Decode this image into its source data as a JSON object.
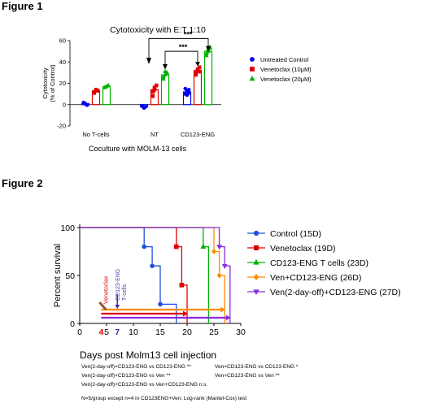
{
  "figure1_title": "Figure 1",
  "figure2_title": "Figure 2",
  "chart_data": [
    {
      "type": "bar",
      "title": "Cytotoxicity with E:T 1:10",
      "ylabel": "Cytotoxicity\n(% of Control)",
      "xlabel": "Coculture with MOLM-13 cells",
      "categories": [
        "No T-cells",
        "NT",
        "CD123-ENG"
      ],
      "ylim": [
        -20,
        60
      ],
      "yticks": [
        -20,
        0,
        20,
        40,
        60
      ],
      "series": [
        {
          "name": "Untreated Control",
          "color": "#0000ee",
          "marker": "circle",
          "values": [
            1,
            -2,
            12
          ],
          "points": [
            [
              2,
              0.5,
              -0.5
            ],
            [
              -1,
              -3,
              -2,
              -1.5,
              -3
            ],
            [
              10,
              13,
              11,
              15,
              9,
              14
            ]
          ]
        },
        {
          "name": "Venetoclax (10μM)",
          "color": "#e00000",
          "marker": "square",
          "values": [
            13,
            14,
            32
          ],
          "points": [
            [
              11,
              14,
              13
            ],
            [
              8,
              14,
              18,
              12,
              16
            ],
            [
              28,
              32,
              35,
              30,
              33,
              31
            ]
          ]
        },
        {
          "name": "Venetoclax (20μM)",
          "color": "#00b000",
          "marker": "triangle",
          "values": [
            17,
            28,
            50
          ],
          "points": [
            [
              16,
              17,
              18
            ],
            [
              24,
              28,
              30,
              26,
              31
            ],
            [
              46,
              50,
              54,
              48,
              52,
              53
            ]
          ]
        }
      ],
      "significance": [
        "***",
        "***"
      ]
    },
    {
      "type": "line",
      "subtype": "kaplan-meier",
      "ylabel": "Percent survival",
      "xlabel": "Days post Molm13 cell injection",
      "xlim": [
        0,
        30
      ],
      "ylim": [
        0,
        100
      ],
      "xticks": [
        0,
        5,
        10,
        15,
        20,
        25,
        30
      ],
      "yticks": [
        0,
        50,
        100
      ],
      "series": [
        {
          "name": "Control (15D)",
          "color": "#1f4fe0",
          "marker": "circle",
          "steps": [
            [
              0,
              100
            ],
            [
              12,
              80
            ],
            [
              13.5,
              60
            ],
            [
              15,
              20
            ],
            [
              18,
              0
            ]
          ]
        },
        {
          "name": "Venetoclax (19D)",
          "color": "#e00000",
          "marker": "square",
          "steps": [
            [
              0,
              100
            ],
            [
              18,
              80
            ],
            [
              19,
              40
            ],
            [
              20,
              0
            ]
          ]
        },
        {
          "name": "CD123-ENG T cells (23D)",
          "color": "#00b000",
          "marker": "triangle",
          "steps": [
            [
              0,
              100
            ],
            [
              23,
              80
            ],
            [
              24,
              0
            ]
          ]
        },
        {
          "name": "Ven+CD123-ENG (26D)",
          "color": "#ff8c00",
          "marker": "diamond",
          "steps": [
            [
              0,
              100
            ],
            [
              25,
              75
            ],
            [
              26,
              50
            ],
            [
              27,
              0
            ]
          ]
        },
        {
          "name": "Ven(2-day-off)+CD123-ENG (27D)",
          "color": "#8a2be2",
          "marker": "triangle-down",
          "steps": [
            [
              0,
              100
            ],
            [
              26,
              80
            ],
            [
              27,
              60
            ],
            [
              28,
              0
            ]
          ]
        }
      ],
      "annotations": {
        "venetoclax_label": "Venetoclax",
        "tcell_label": "CD123-ENG\nT-cells",
        "day_start": "4",
        "day_tcell": "7"
      }
    }
  ],
  "stats_lines": [
    "Ven(2-day-off)+CD123-ENG vs CD123-ENG **",
    "Ven+CD123-ENG  vs CD123-ENG *",
    "Ven(2-day-off)+CD123-ENG vs Ven **",
    "Ven+CD123-ENG  vs Ven **",
    "Ven(2-day-off)+CD123-ENG vs Ven+CD123-ENG  n.s."
  ],
  "footnote": "N=5/group except n=4 in CD123ENG+Ven; Log-rank (Mantel-Cox) test"
}
